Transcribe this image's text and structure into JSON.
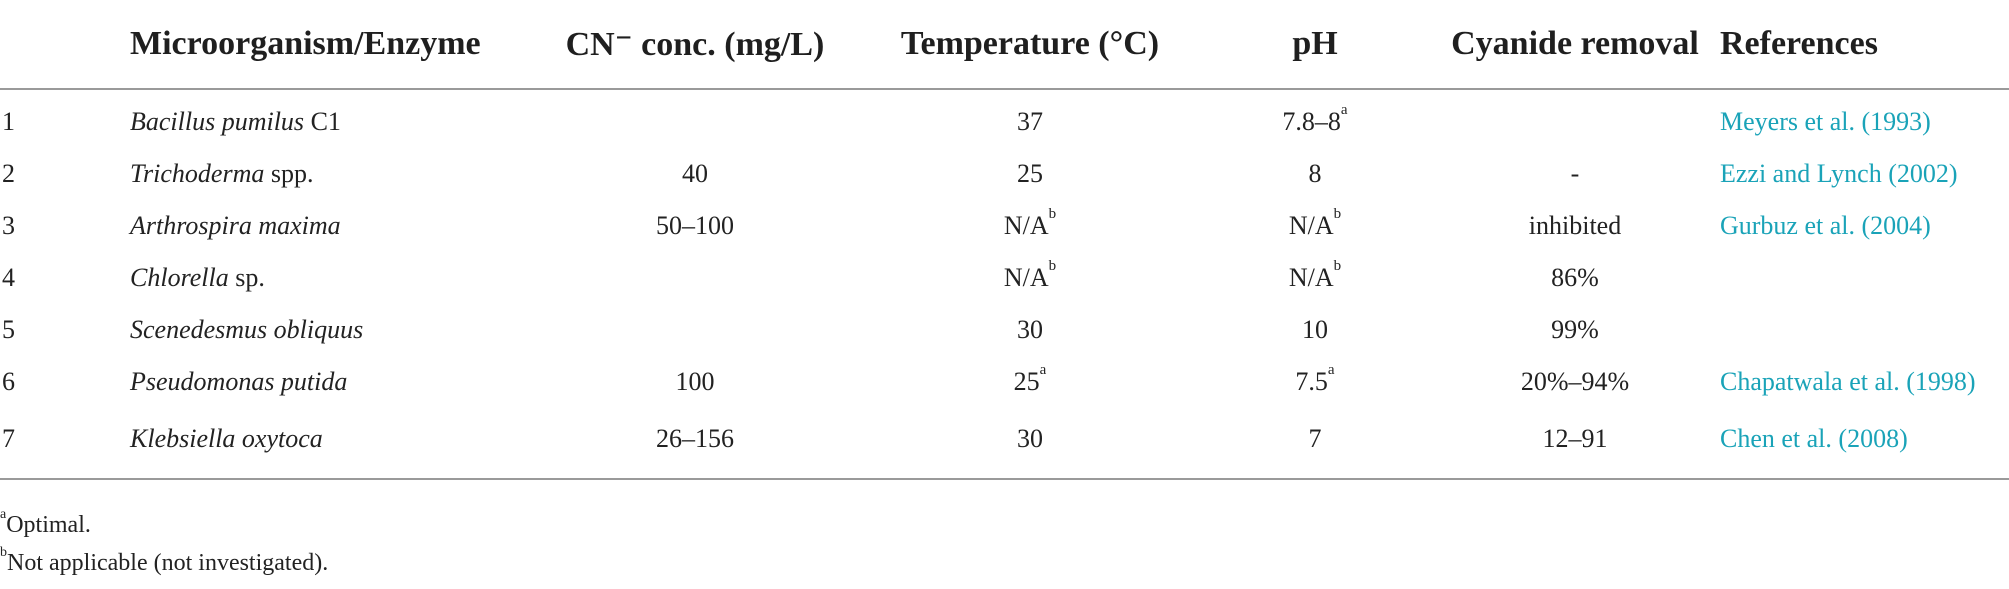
{
  "table": {
    "headers": {
      "number": "",
      "organism": "Microorganism/Enzyme",
      "cn_conc": "CN⁻ conc. (mg/L)",
      "temperature": "Temperature (°C)",
      "ph": "pH",
      "removal": "Cyanide removal",
      "references": "References"
    },
    "rows": [
      {
        "num": "1",
        "organism_italic": "Bacillus pumilus",
        "organism_plain": " C1",
        "cn": "",
        "temp": "37",
        "temp_sup": "",
        "ph": "7.8–8",
        "ph_sup": "a",
        "removal": "",
        "ref": "Meyers et al. (1993)"
      },
      {
        "num": "2",
        "organism_italic": "Trichoderma",
        "organism_plain": " spp.",
        "cn": "40",
        "temp": "25",
        "temp_sup": "",
        "ph": "8",
        "ph_sup": "",
        "removal": "-",
        "ref": "Ezzi and Lynch (2002)"
      },
      {
        "num": "3",
        "organism_italic": "Arthrospira maxima",
        "organism_plain": "",
        "cn": "50–100",
        "temp": "N/A",
        "temp_sup": "b",
        "ph": "N/A",
        "ph_sup": "b",
        "removal": "inhibited",
        "ref": "Gurbuz et al. (2004)"
      },
      {
        "num": "4",
        "organism_italic": "Chlorella",
        "organism_plain": " sp.",
        "cn": "",
        "temp": "N/A",
        "temp_sup": "b",
        "ph": "N/A",
        "ph_sup": "b",
        "removal": "86%",
        "ref": ""
      },
      {
        "num": "5",
        "organism_italic": "Scenedesmus obliquus",
        "organism_plain": "",
        "cn": "",
        "temp": "30",
        "temp_sup": "",
        "ph": "10",
        "ph_sup": "",
        "removal": "99%",
        "ref": ""
      },
      {
        "num": "6",
        "organism_italic": "Pseudomonas putida",
        "organism_plain": "",
        "cn": "100",
        "temp": "25",
        "temp_sup": "a",
        "ph": "7.5",
        "ph_sup": "a",
        "removal": "20%–94%",
        "ref": "Chapatwala et al. (1998)"
      },
      {
        "num": "7",
        "organism_italic": "Klebsiella oxytoca",
        "organism_plain": "",
        "cn": "26–156",
        "temp": "30",
        "temp_sup": "",
        "ph": "7",
        "ph_sup": "",
        "removal": "12–91",
        "ref": "Chen et al. (2008)"
      }
    ]
  },
  "footnotes": [
    {
      "mark": "a",
      "text": "Optimal."
    },
    {
      "mark": "b",
      "text": "Not applicable (not investigated)."
    }
  ],
  "colors": {
    "reference_link": "#1aa3b8",
    "rule_lines": "#9a9a9a",
    "text": "#222222"
  }
}
